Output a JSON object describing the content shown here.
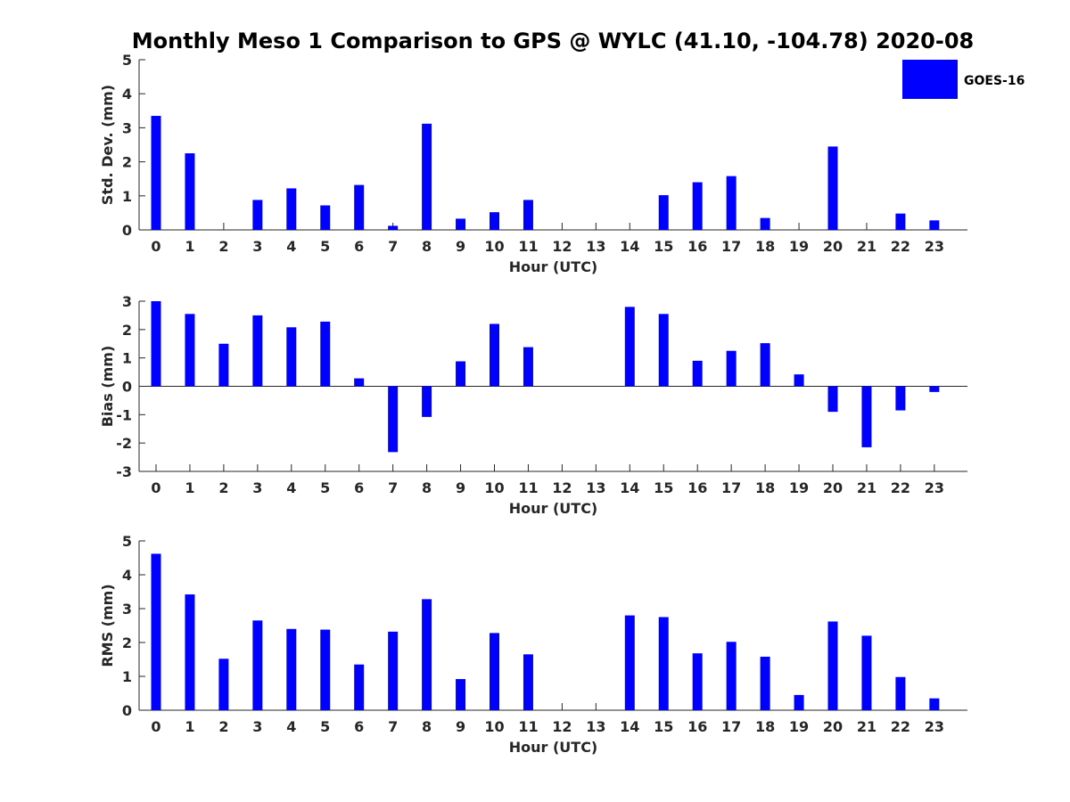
{
  "title": "Monthly Meso 1 Comparison to GPS @ WYLC (41.10, -104.78) 2020-08",
  "bar_color": "#0000ff",
  "legend": {
    "label": "GOES-16"
  },
  "chart_data": [
    {
      "type": "bar",
      "title": "Monthly Meso 1 Comparison to GPS @ WYLC (41.10, -104.78) 2020-08",
      "xlabel": "Hour (UTC)",
      "ylabel": "Std. Dev. (mm)",
      "ylim": [
        0,
        5
      ],
      "yticks": [
        0,
        1,
        2,
        3,
        4,
        5
      ],
      "categories": [
        "0",
        "1",
        "2",
        "3",
        "4",
        "5",
        "6",
        "7",
        "8",
        "9",
        "10",
        "11",
        "12",
        "13",
        "14",
        "15",
        "16",
        "17",
        "18",
        "19",
        "20",
        "21",
        "22",
        "23"
      ],
      "series": [
        {
          "name": "GOES-16",
          "values": [
            3.35,
            2.25,
            0,
            0.88,
            1.22,
            0.72,
            1.32,
            0.12,
            3.12,
            0.33,
            0.52,
            0.88,
            0,
            0,
            0,
            1.02,
            1.4,
            1.58,
            0.35,
            0,
            2.45,
            0,
            0.48,
            0.28
          ]
        }
      ]
    },
    {
      "type": "bar",
      "title": "",
      "xlabel": "Hour (UTC)",
      "ylabel": "Bias (mm)",
      "ylim": [
        -3,
        3
      ],
      "yticks": [
        -3,
        -2,
        -1,
        0,
        1,
        2,
        3
      ],
      "categories": [
        "0",
        "1",
        "2",
        "3",
        "4",
        "5",
        "6",
        "7",
        "8",
        "9",
        "10",
        "11",
        "12",
        "13",
        "14",
        "15",
        "16",
        "17",
        "18",
        "19",
        "20",
        "21",
        "22",
        "23"
      ],
      "series": [
        {
          "name": "GOES-16",
          "values": [
            3.0,
            2.55,
            1.5,
            2.5,
            2.08,
            2.28,
            0.28,
            -2.32,
            -1.08,
            0.88,
            2.2,
            1.38,
            0,
            0,
            2.8,
            2.55,
            0.9,
            1.25,
            1.52,
            0.42,
            -0.9,
            -2.15,
            -0.85,
            -0.2
          ]
        }
      ]
    },
    {
      "type": "bar",
      "title": "",
      "xlabel": "Hour (UTC)",
      "ylabel": "RMS (mm)",
      "ylim": [
        0,
        5
      ],
      "yticks": [
        0,
        1,
        2,
        3,
        4,
        5
      ],
      "categories": [
        "0",
        "1",
        "2",
        "3",
        "4",
        "5",
        "6",
        "7",
        "8",
        "9",
        "10",
        "11",
        "12",
        "13",
        "14",
        "15",
        "16",
        "17",
        "18",
        "19",
        "20",
        "21",
        "22",
        "23"
      ],
      "series": [
        {
          "name": "GOES-16",
          "values": [
            4.62,
            3.42,
            1.52,
            2.65,
            2.4,
            2.38,
            1.35,
            2.32,
            3.28,
            0.92,
            2.28,
            1.65,
            0,
            0,
            2.8,
            2.75,
            1.68,
            2.02,
            1.58,
            0.45,
            2.62,
            2.2,
            0.98,
            0.35
          ]
        }
      ]
    }
  ]
}
